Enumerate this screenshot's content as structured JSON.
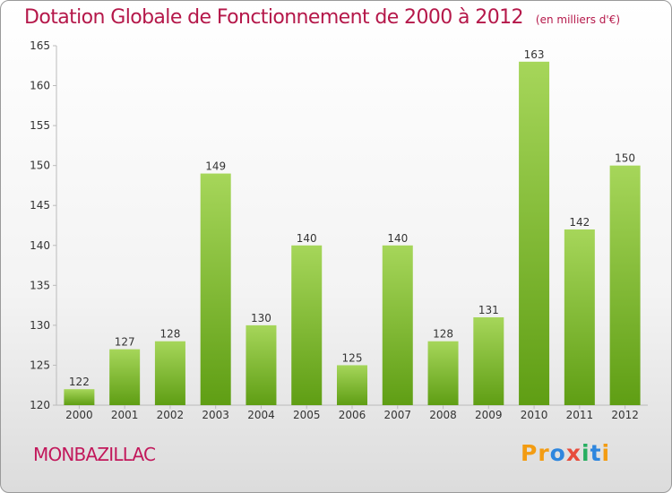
{
  "header": {
    "title": "Dotation Globale de Fonctionnement de 2000 à 2012",
    "subtitle": "(en milliers d'€)"
  },
  "footer": {
    "town": "MONBAZILLAC",
    "brand": "Proxiti",
    "brand_letters": [
      {
        "char": "P",
        "color": "#f39c12"
      },
      {
        "char": "r",
        "color": "#f39c12"
      },
      {
        "char": "o",
        "color": "#2e86de"
      },
      {
        "char": "x",
        "color": "#e74c3c"
      },
      {
        "char": "i",
        "color": "#27ae60"
      },
      {
        "char": "t",
        "color": "#2e86de"
      },
      {
        "char": "i",
        "color": "#f39c12"
      }
    ]
  },
  "chart_data": {
    "type": "bar",
    "title": "Dotation Globale de Fonctionnement de 2000 à 2012",
    "subtitle": "(en milliers d'€)",
    "categories": [
      "2000",
      "2001",
      "2002",
      "2003",
      "2004",
      "2005",
      "2006",
      "2007",
      "2008",
      "2009",
      "2010",
      "2011",
      "2012"
    ],
    "values": [
      122,
      127,
      128,
      149,
      130,
      140,
      125,
      140,
      128,
      131,
      163,
      142,
      150
    ],
    "ylim": [
      120,
      165
    ],
    "yticks": [
      120,
      125,
      130,
      135,
      140,
      145,
      150,
      155,
      160,
      165
    ],
    "grid": false,
    "bar_color_top": "#a6d65a",
    "bar_color_bottom": "#5f9e14",
    "axis_color": "#bbbbbb",
    "text_color": "#333333"
  }
}
